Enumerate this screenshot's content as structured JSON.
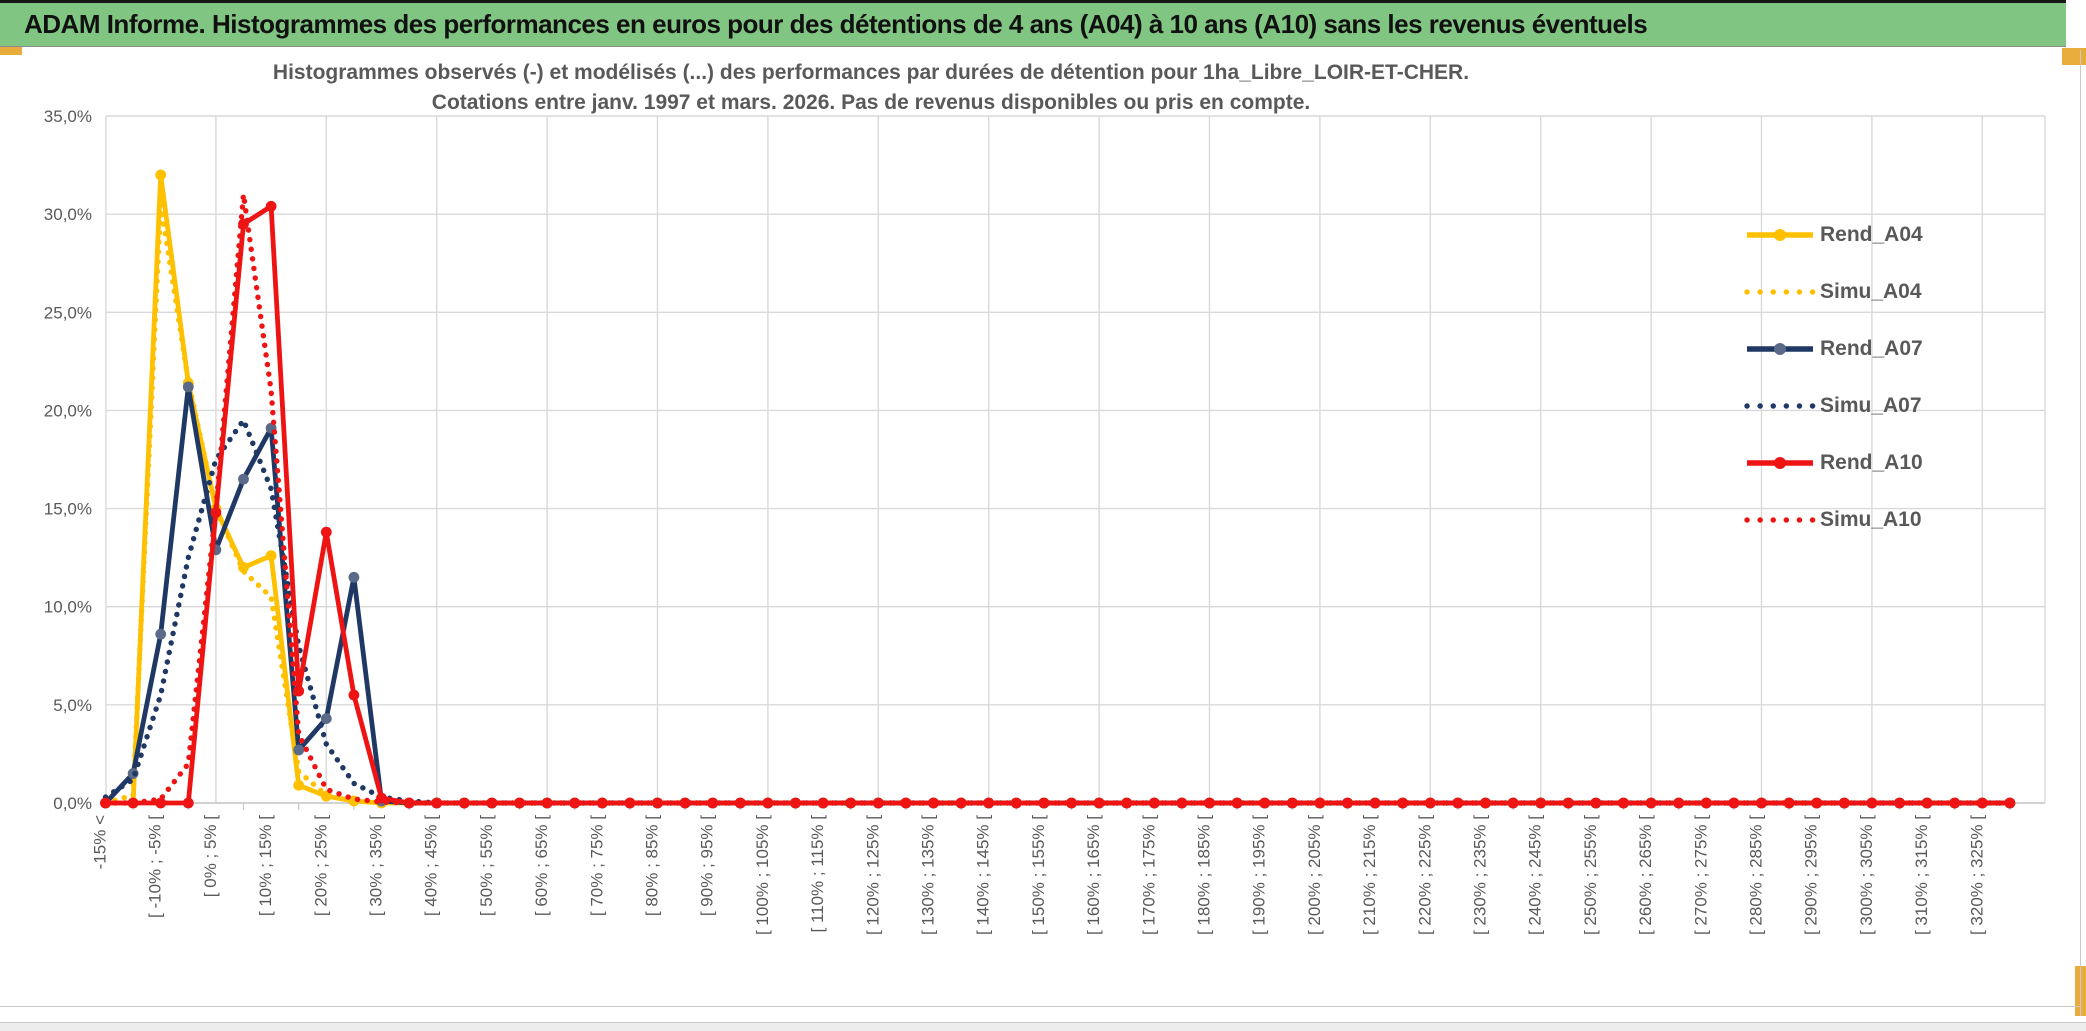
{
  "header": {
    "title": "ADAM Informe. Histogrammes des performances en euros pour des détentions de 4 ans (A04) à 10 ans (A10) sans les revenus éventuels"
  },
  "chart_title": {
    "line1": "Histogrammes observés (-) et modélisés (...) des performances par durées de détention pour 1ha_Libre_LOIR-ET-CHER.",
    "line2": "Cotations entre janv. 1997 et mars. 2026. Pas de revenus disponibles ou pris en compte."
  },
  "colors": {
    "titlebar_green": "#80C581",
    "gold_accent": "#E8AC3C",
    "gridline": "#D9D9D9",
    "axis_text": "#595959",
    "title_text": "#595959",
    "series_gold": "#FFC000",
    "series_navy": "#1F3864",
    "series_navy_marker": "#5A6A88",
    "series_red": "#EE1414"
  },
  "chart_data": {
    "type": "line",
    "title": "Histogrammes observés (-) et modélisés (...) des performances par durées de détention pour 1ha_Libre_LOIR-ET-CHER. Cotations entre janv. 1997 et mars. 2026. Pas de revenus disponibles ou pris en compte.",
    "xlabel": "",
    "ylabel": "",
    "ylim": [
      0,
      35
    ],
    "grid": true,
    "legend_position": "right",
    "ytick_labels": [
      "0,0%",
      "5,0%",
      "10,0%",
      "15,0%",
      "20,0%",
      "25,0%",
      "30,0%",
      "35,0%"
    ],
    "categories": [
      "-15% <",
      "",
      "[ -10% ; -5% [",
      "",
      "[ 0% ; 5% [",
      "",
      "[ 10% ; 15% [",
      "",
      "[ 20% ; 25% [",
      "",
      "[ 30% ; 35% [",
      "",
      "[ 40% ; 45% [",
      "",
      "[ 50% ; 55% [",
      "",
      "[ 60% ; 65% [",
      "",
      "[ 70% ; 75% [",
      "",
      "[ 80% ; 85% [",
      "",
      "[ 90% ; 95% [",
      "",
      "[ 100% ; 105% [",
      "",
      "[ 110% ; 115% [",
      "",
      "[ 120% ; 125% [",
      "",
      "[ 130% ; 135% [",
      "",
      "[ 140% ; 145% [",
      "",
      "[ 150% ; 155% [",
      "",
      "[ 160% ; 165% [",
      "",
      "[ 170% ; 175% [",
      "",
      "[ 180% ; 185% [",
      "",
      "[ 190% ; 195% [",
      "",
      "[ 200% ; 205% [",
      "",
      "[ 210% ; 215% [",
      "",
      "[ 220% ; 225% [",
      "",
      "[ 230% ; 235% [",
      "",
      "[ 240% ; 245% [",
      "",
      "[ 250% ; 255% [",
      "",
      "[ 260% ; 265% [",
      "",
      "[ 270% ; 275% [",
      "",
      "[ 280% ; 285% [",
      "",
      "[ 290% ; 295% [",
      "",
      "[ 300% ; 305% [",
      "",
      "[ 310% ; 315% [",
      "",
      "[ 320% ; 325% [",
      ""
    ],
    "series": [
      {
        "name": "Rend_A04",
        "style": "solid",
        "color": "#FFC000",
        "marker_color": "#FFC000",
        "values": [
          0,
          0,
          32,
          21.4,
          15,
          12,
          12.6,
          0.9,
          0.35,
          0.1,
          0,
          0,
          0,
          0,
          0,
          0,
          0,
          0,
          0,
          0,
          0,
          0,
          0,
          0,
          0,
          0,
          0,
          0,
          0,
          0,
          0,
          0,
          0,
          0,
          0,
          0,
          0,
          0,
          0,
          0,
          0,
          0,
          0,
          0,
          0,
          0,
          0,
          0,
          0,
          0,
          0,
          0,
          0,
          0,
          0,
          0,
          0,
          0,
          0,
          0,
          0,
          0,
          0,
          0,
          0,
          0,
          0,
          0,
          0,
          0
        ]
      },
      {
        "name": "Simu_A04",
        "style": "dotted",
        "color": "#FFC000",
        "values": [
          0,
          0.4,
          30.5,
          21.5,
          15,
          11.8,
          10.5,
          1.6,
          0.4,
          0.1,
          0.05,
          0,
          0,
          0,
          0,
          0,
          0,
          0,
          0,
          0,
          0,
          0,
          0,
          0,
          0,
          0,
          0,
          0,
          0,
          0,
          0,
          0,
          0,
          0,
          0,
          0,
          0,
          0,
          0,
          0,
          0,
          0,
          0,
          0,
          0,
          0,
          0,
          0,
          0,
          0,
          0,
          0,
          0,
          0,
          0,
          0,
          0,
          0,
          0,
          0,
          0,
          0,
          0,
          0,
          0,
          0,
          0,
          0,
          0,
          0
        ]
      },
      {
        "name": "Rend_A07",
        "style": "solid",
        "color": "#1F3864",
        "marker_color": "#5A6A88",
        "values": [
          0,
          1.5,
          8.6,
          21.2,
          12.9,
          16.5,
          19.1,
          2.7,
          4.3,
          11.5,
          0.1,
          0,
          0,
          0,
          0,
          0,
          0,
          0,
          0,
          0,
          0,
          0,
          0,
          0,
          0,
          0,
          0,
          0,
          0,
          0,
          0,
          0,
          0,
          0,
          0,
          0,
          0,
          0,
          0,
          0,
          0,
          0,
          0,
          0,
          0,
          0,
          0,
          0,
          0,
          0,
          0,
          0,
          0,
          0,
          0,
          0,
          0,
          0,
          0,
          0,
          0,
          0,
          0,
          0,
          0,
          0,
          0,
          0,
          0,
          0
        ]
      },
      {
        "name": "Simu_A07",
        "style": "dotted",
        "color": "#1F3864",
        "values": [
          0.3,
          1.2,
          5.5,
          12.5,
          17.5,
          19.5,
          16,
          8,
          3,
          1,
          0.3,
          0.1,
          0,
          0,
          0,
          0,
          0,
          0,
          0,
          0,
          0,
          0,
          0,
          0,
          0,
          0,
          0,
          0,
          0,
          0,
          0,
          0,
          0,
          0,
          0,
          0,
          0,
          0,
          0,
          0,
          0,
          0,
          0,
          0,
          0,
          0,
          0,
          0,
          0,
          0,
          0,
          0,
          0,
          0,
          0,
          0,
          0,
          0,
          0,
          0,
          0,
          0,
          0,
          0,
          0,
          0,
          0,
          0,
          0,
          0
        ]
      },
      {
        "name": "Rend_A10",
        "style": "solid",
        "color": "#EE1414",
        "marker_color": "#EE1414",
        "values": [
          0,
          0,
          0,
          0,
          14.8,
          29.5,
          30.4,
          5.7,
          13.8,
          5.5,
          0.25,
          0,
          0,
          0,
          0,
          0,
          0,
          0,
          0,
          0,
          0,
          0,
          0,
          0,
          0,
          0,
          0,
          0,
          0,
          0,
          0,
          0,
          0,
          0,
          0,
          0,
          0,
          0,
          0,
          0,
          0,
          0,
          0,
          0,
          0,
          0,
          0,
          0,
          0,
          0,
          0,
          0,
          0,
          0,
          0,
          0,
          0,
          0,
          0,
          0,
          0,
          0,
          0,
          0,
          0,
          0,
          0,
          0,
          0,
          0
        ]
      },
      {
        "name": "Simu_A10",
        "style": "dotted",
        "color": "#EE1414",
        "values": [
          0,
          0,
          0.2,
          2,
          15,
          31,
          21,
          3.5,
          0.7,
          0.2,
          0.05,
          0,
          0,
          0,
          0,
          0,
          0,
          0,
          0,
          0,
          0,
          0,
          0,
          0,
          0,
          0,
          0,
          0,
          0,
          0,
          0,
          0,
          0,
          0,
          0,
          0,
          0,
          0,
          0,
          0,
          0,
          0,
          0,
          0,
          0,
          0,
          0,
          0,
          0,
          0,
          0,
          0,
          0,
          0,
          0,
          0,
          0,
          0,
          0,
          0,
          0,
          0,
          0,
          0,
          0,
          0,
          0,
          0,
          0,
          0
        ]
      }
    ]
  },
  "legend": {
    "items": [
      {
        "label": "Rend_A04"
      },
      {
        "label": "Simu_A04"
      },
      {
        "label": "Rend_A07"
      },
      {
        "label": "Simu_A07"
      },
      {
        "label": "Rend_A10"
      },
      {
        "label": "Simu_A10"
      }
    ]
  }
}
